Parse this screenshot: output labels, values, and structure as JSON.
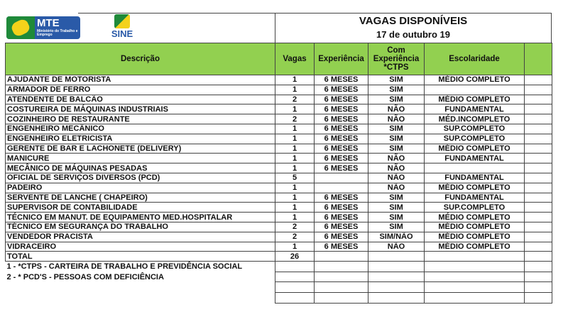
{
  "logos": {
    "mte": "MTE",
    "mte_sub": "Ministério do Trabalho e Emprego",
    "sine": "SINE"
  },
  "title": "VAGAS DISPONÍVEIS",
  "date": "17 de outubro 19",
  "headers": [
    "Descrição",
    "Vagas",
    "Experiência",
    "Com Experiência *CTPS",
    "Escolaridade",
    ""
  ],
  "rows": [
    [
      "AJUDANTE DE MOTORISTA",
      "1",
      "6 MESES",
      "SIM",
      "MÉDIO COMPLETO"
    ],
    [
      "ARMADOR DE FERRO",
      "1",
      "6 MESES",
      "SIM",
      ""
    ],
    [
      "ATENDENTE DE BALCÃO",
      "2",
      "6 MESES",
      "SIM",
      "MÉDIO COMPLETO"
    ],
    [
      "COSTUREIRA DE MÁQUINAS INDUSTRIAIS",
      "1",
      "6 MESES",
      "NÃO",
      "FUNDAMENTAL"
    ],
    [
      "COZINHEIRO DE RESTAURANTE",
      "2",
      "6 MESES",
      "NÃO",
      "MÉD.INCOMPLETO"
    ],
    [
      "ENGENHEIRO MECÂNICO",
      "1",
      "6 MESES",
      "SIM",
      "SUP.COMPLETO"
    ],
    [
      "ENGENHEIRO ELETRICISTA",
      "1",
      "6 MESES",
      "SIM",
      "SUP.COMPLETO"
    ],
    [
      "GERENTE DE BAR E LACHONETE (DELIVERY)",
      "1",
      "6 MESES",
      "SIM",
      "MÉDIO COMPLETO"
    ],
    [
      "MANICURE",
      "1",
      "6 MESES",
      "NÃO",
      "FUNDAMENTAL"
    ],
    [
      "MECÂNICO DE MÁQUINAS PESADAS",
      "1",
      "6 MESES",
      "NÃO",
      ""
    ],
    [
      "OFICIAL DE SERVIÇOS DIVERSOS (PCD)",
      "5",
      "",
      "NÃO",
      "FUNDAMENTAL"
    ],
    [
      "PADEIRO",
      "1",
      "",
      "NÃO",
      "MÉDIO COMPLETO"
    ],
    [
      "SERVENTE DE LANCHE ( CHAPEIRO)",
      "1",
      "6 MESES",
      "SIM",
      "FUNDAMENTAL"
    ],
    [
      "SUPERVISOR DE CONTABILIDADE",
      "1",
      "6 MESES",
      "SIM",
      "SUP.COMPLETO"
    ],
    [
      "TÉCNICO EM MANUT. DE EQUIPAMENTO MED.HOSPITALAR",
      "1",
      "6 MESES",
      "SIM",
      "MÉDIO COMPLETO"
    ],
    [
      "TÉCNICO EM SEGURANÇA DO TRABALHO",
      "2",
      "6 MESES",
      "SIM",
      "MÉDIO COMPLETO"
    ],
    [
      "VENDEDOR PRACISTA",
      "2",
      "6 MESES",
      "SIM/NÃO",
      "MÉDIO COMPLETO"
    ],
    [
      "VIDRACEIRO",
      "1",
      "6 MESES",
      "NÃO",
      "MÉDIO COMPLETO"
    ]
  ],
  "total_label": "TOTAL",
  "total": "26",
  "notes": [
    "1 - *CTPS - CARTEIRA DE TRABALHO E PREVIDÊNCIA SOCIAL",
    "2 - * PCD'S - PESSOAS COM DEFICIÊNCIA"
  ]
}
